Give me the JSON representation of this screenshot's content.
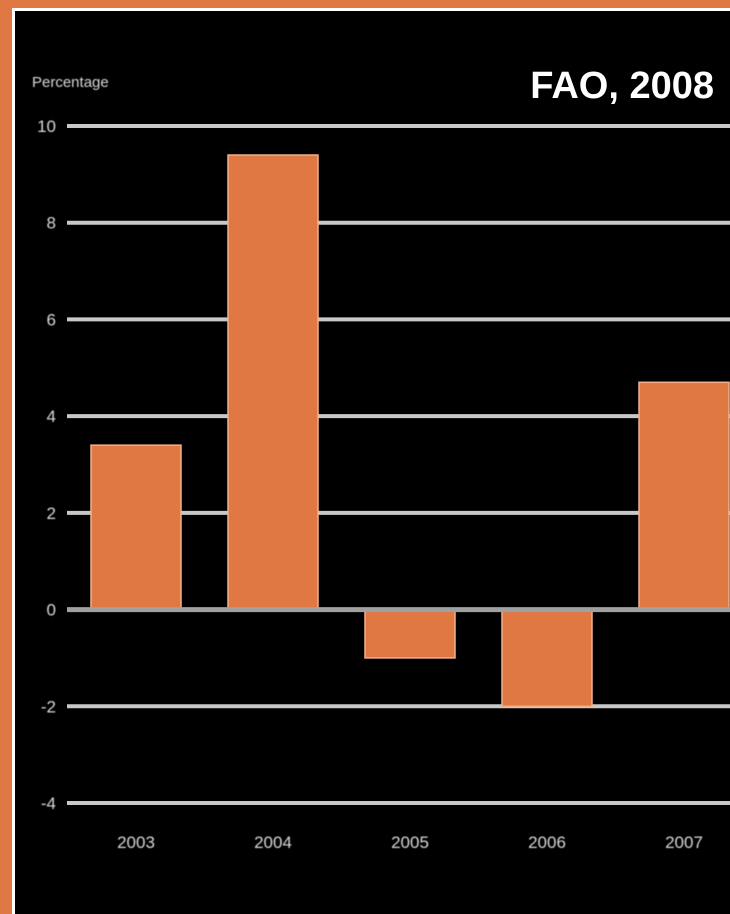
{
  "colors": {
    "background": "#000000",
    "frame": "#e07843",
    "bar": "#e07843",
    "gridline": "#c8c8c8",
    "zero_line": "#a0a0a0",
    "text": "#d8d8d8",
    "title": "#ffffff"
  },
  "chart_data": {
    "type": "bar",
    "title": "FAO, 2008",
    "ylabel": "Percentage",
    "xlabel": "",
    "categories": [
      "2003",
      "2004",
      "2005",
      "2006",
      "2007"
    ],
    "values": [
      3.4,
      9.4,
      -1.0,
      -2.0,
      4.7
    ],
    "ylim": [
      -4,
      10
    ],
    "yticks": [
      -4,
      -2,
      0,
      2,
      4,
      6,
      8,
      10
    ],
    "grid": true,
    "legend": "none"
  }
}
